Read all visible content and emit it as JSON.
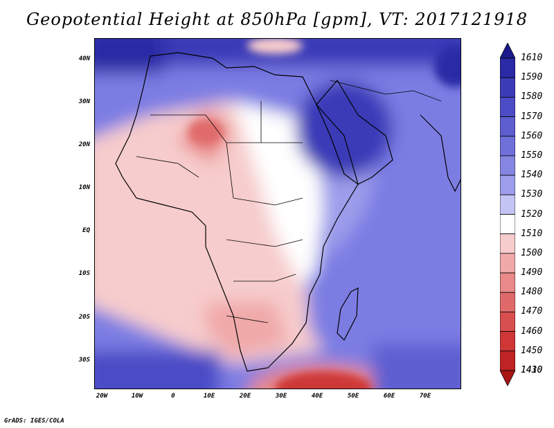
{
  "title": "Geopotential Height at 850hPa [gpm], VT: 2017121918",
  "footer": "GrADS: IGES/COLA",
  "map": {
    "lat_labels": [
      "40N",
      "30N",
      "20N",
      "10N",
      "EQ",
      "10S",
      "20S",
      "30S"
    ],
    "lon_labels": [
      "20W",
      "10W",
      "0",
      "10E",
      "20E",
      "30E",
      "40E",
      "50E",
      "60E",
      "70E"
    ],
    "field": "Geopotential Height 850hPa",
    "units": "gpm",
    "valid_time": "2017121918"
  },
  "colorbar": {
    "levels": [
      "1610",
      "1590",
      "1580",
      "1570",
      "1560",
      "1550",
      "1540",
      "1530",
      "1520",
      "1510",
      "1500",
      "1490",
      "1480",
      "1470",
      "1460",
      "1450",
      "1430",
      "1410"
    ],
    "colors": [
      "#1a1a8c",
      "#2a2aa6",
      "#3b3bb8",
      "#4c4cc6",
      "#5e5ed1",
      "#7070da",
      "#8585e2",
      "#9d9deb",
      "#c4c4f4",
      "#ffffff",
      "#f7cccc",
      "#f0a9a9",
      "#e98989",
      "#e06a6a",
      "#d84f4f",
      "#cf3737",
      "#bf2323",
      "#a81616"
    ]
  }
}
